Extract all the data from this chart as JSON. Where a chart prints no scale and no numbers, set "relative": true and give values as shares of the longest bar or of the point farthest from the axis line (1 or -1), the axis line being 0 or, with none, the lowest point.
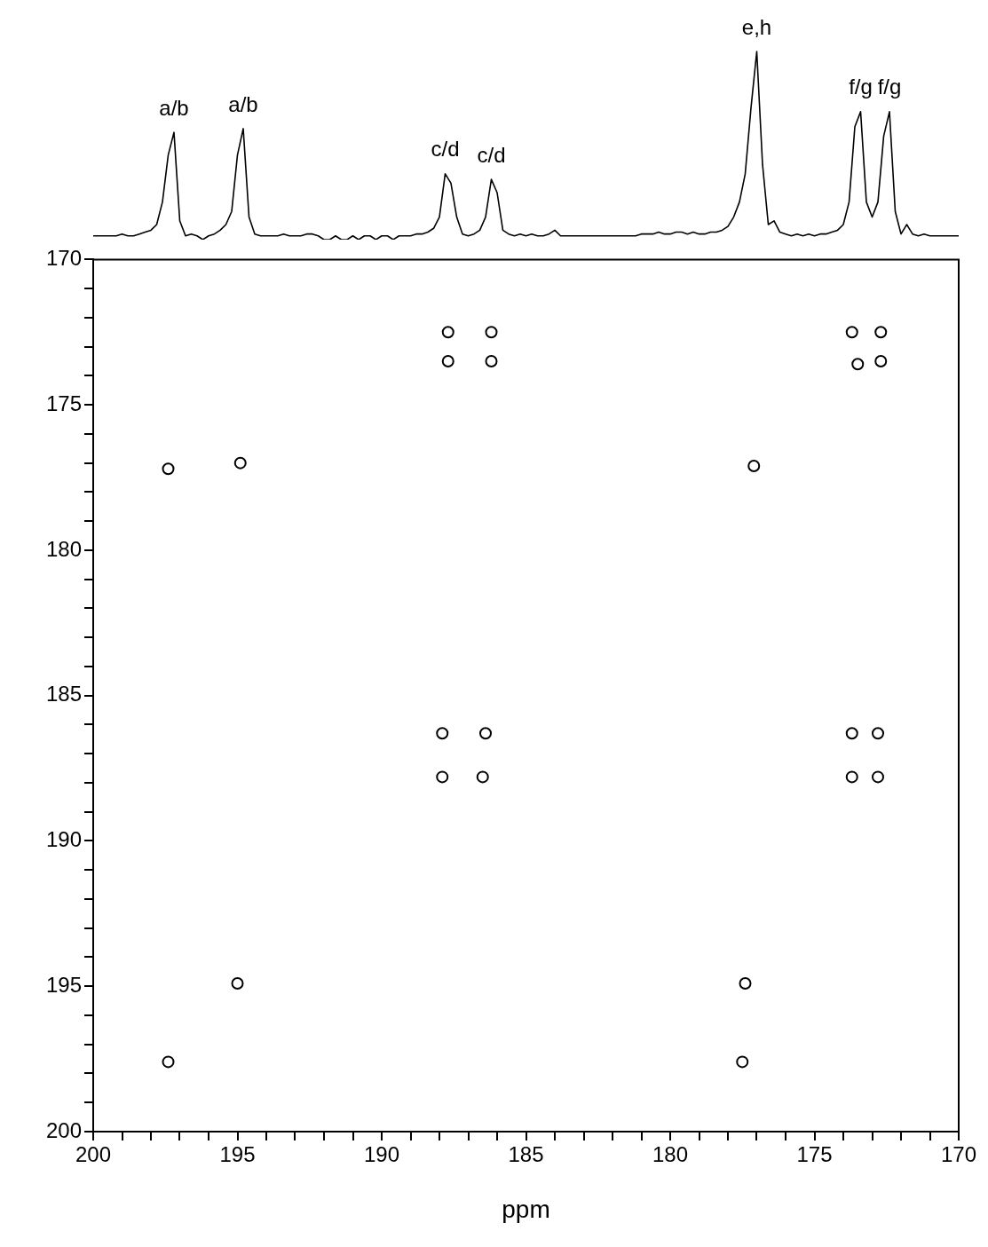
{
  "chart_data": [
    {
      "type": "line",
      "relative": true,
      "tick_labels": false,
      "categories": [
        null,
        null,
        null,
        null,
        null,
        null,
        null,
        null,
        null,
        null,
        null,
        null,
        null,
        null,
        null,
        null,
        null,
        null,
        null,
        null,
        null,
        null,
        null,
        null,
        null,
        null,
        null,
        null,
        null,
        null,
        null,
        null,
        null,
        null,
        null,
        null,
        null,
        null,
        null,
        null,
        null,
        null,
        null,
        null,
        null,
        null,
        null,
        null,
        null,
        null,
        null,
        null,
        null,
        null,
        null,
        null,
        null,
        null,
        null,
        null,
        null,
        null,
        null,
        null,
        null,
        null,
        null,
        null,
        null,
        null,
        null,
        null,
        null,
        null,
        null,
        null,
        null,
        null,
        null,
        null,
        null,
        null,
        null,
        null,
        null,
        null,
        null,
        null,
        null,
        null,
        null,
        null,
        null,
        null,
        null,
        null,
        null,
        null,
        null,
        null,
        null,
        null,
        null,
        null,
        null,
        null,
        null,
        null,
        null,
        null,
        null,
        null,
        null,
        null,
        null,
        null,
        null,
        null,
        null,
        null,
        null,
        null,
        null,
        null,
        null,
        null,
        null,
        null,
        null,
        null,
        null,
        null,
        null,
        null,
        null,
        null,
        null,
        null,
        null,
        null,
        null,
        null,
        null,
        null,
        null,
        null,
        null,
        null,
        null,
        null,
        null
      ],
      "series": [
        {
          "color": "#000000",
          "values": [
            0.02,
            0.02,
            0.02,
            0.02,
            0.02,
            0.03,
            0.02,
            0.02,
            0.03,
            0.04,
            0.05,
            0.08,
            0.2,
            0.45,
            0.57,
            0.1,
            0.02,
            0.03,
            0.02,
            0,
            0.02,
            0.03,
            0.05,
            0.08,
            0.15,
            0.45,
            0.59,
            0.12,
            0.03,
            0.02,
            0.02,
            0.02,
            0.02,
            0.03,
            0.02,
            0.02,
            0.02,
            0.03,
            0.03,
            0.02,
            0,
            0,
            0.02,
            0,
            0,
            0.02,
            0,
            0.02,
            0.02,
            0,
            0.02,
            0.02,
            0,
            0.02,
            0.02,
            0.02,
            0.03,
            0.03,
            0.04,
            0.06,
            0.12,
            0.35,
            0.3,
            0.12,
            0.03,
            0.02,
            0.03,
            0.05,
            0.12,
            0.32,
            0.25,
            0.05,
            0.03,
            0.02,
            0.03,
            0.02,
            0.03,
            0.02,
            0.02,
            0.03,
            0.05,
            0.02,
            0.02,
            0.02,
            0.02,
            0.02,
            0.02,
            0.02,
            0.02,
            0.02,
            0.02,
            0.02,
            0.02,
            0.02,
            0.02,
            0.03,
            0.03,
            0.03,
            0.04,
            0.03,
            0.03,
            0.04,
            0.04,
            0.03,
            0.04,
            0.03,
            0.03,
            0.04,
            0.04,
            0.05,
            0.07,
            0.12,
            0.2,
            0.35,
            0.7,
            1,
            0.4,
            0.08,
            0.1,
            0.04,
            0.03,
            0.02,
            0.03,
            0.02,
            0.03,
            0.02,
            0.03,
            0.03,
            0.04,
            0.05,
            0.08,
            0.2,
            0.6,
            0.68,
            0.2,
            0.12,
            0.2,
            0.55,
            0.68,
            0.15,
            0.03,
            0.08,
            0.03,
            0.02,
            0.03,
            0.02,
            0.02,
            0.02,
            0.02,
            0.02,
            0.02
          ]
        }
      ],
      "annotations": [
        "a/b",
        "a/b",
        "c/d",
        "c/d",
        "e,h",
        "f/g",
        "f/g"
      ]
    },
    {
      "type": "scatter",
      "xlabel": "ppm",
      "marker": "circle",
      "xlim": [
        200,
        170
      ],
      "ylim": [
        200,
        170
      ],
      "xticks": [
        200,
        {
          "value": 199,
          "label": null
        },
        {
          "value": 198,
          "label": null
        },
        {
          "value": 197,
          "label": null
        },
        {
          "value": 196,
          "label": null
        },
        195,
        {
          "value": 194,
          "label": null
        },
        {
          "value": 193,
          "label": null
        },
        {
          "value": 192,
          "label": null
        },
        {
          "value": 191,
          "label": null
        },
        190,
        {
          "value": 189,
          "label": null
        },
        {
          "value": 188,
          "label": null
        },
        {
          "value": 187,
          "label": null
        },
        {
          "value": 186,
          "label": null
        },
        185,
        {
          "value": 184,
          "label": null
        },
        {
          "value": 183,
          "label": null
        },
        {
          "value": 182,
          "label": null
        },
        {
          "value": 181,
          "label": null
        },
        180,
        {
          "value": 179,
          "label": null
        },
        {
          "value": 178,
          "label": null
        },
        {
          "value": 177,
          "label": null
        },
        {
          "value": 176,
          "label": null
        },
        175,
        {
          "value": 174,
          "label": null
        },
        {
          "value": 173,
          "label": null
        },
        {
          "value": 172,
          "label": null
        },
        {
          "value": 171,
          "label": null
        },
        170
      ],
      "yticks": [
        170,
        {
          "value": 171,
          "label": null
        },
        {
          "value": 172,
          "label": null
        },
        {
          "value": 173,
          "label": null
        },
        {
          "value": 174,
          "label": null
        },
        175,
        {
          "value": 176,
          "label": null
        },
        {
          "value": 177,
          "label": null
        },
        {
          "value": 178,
          "label": null
        },
        {
          "value": 179,
          "label": null
        },
        180,
        {
          "value": 181,
          "label": null
        },
        {
          "value": 182,
          "label": null
        },
        {
          "value": 183,
          "label": null
        },
        {
          "value": 184,
          "label": null
        },
        185,
        {
          "value": 186,
          "label": null
        },
        {
          "value": 187,
          "label": null
        },
        {
          "value": 188,
          "label": null
        },
        {
          "value": 189,
          "label": null
        },
        190,
        {
          "value": 191,
          "label": null
        },
        {
          "value": 192,
          "label": null
        },
        {
          "value": 193,
          "label": null
        },
        {
          "value": 194,
          "label": null
        },
        195,
        {
          "value": 196,
          "label": null
        },
        {
          "value": 197,
          "label": null
        },
        {
          "value": 198,
          "label": null
        },
        {
          "value": 199,
          "label": null
        },
        200
      ],
      "series": [
        {
          "color": "#000000",
          "x": [
            187.7,
            186.2,
            187.7,
            186.2,
            173.7,
            172.7,
            173.5,
            172.7,
            197.4,
            194.9,
            177.1,
            187.9,
            186.4,
            187.9,
            186.5,
            173.7,
            172.8,
            173.7,
            172.8,
            195.0,
            177.4,
            197.4,
            177.5
          ],
          "values": [
            172.5,
            172.5,
            173.5,
            173.5,
            172.5,
            172.5,
            173.6,
            173.5,
            177.2,
            177.0,
            177.1,
            186.3,
            186.3,
            187.8,
            187.8,
            186.3,
            186.3,
            187.8,
            187.8,
            194.9,
            194.9,
            197.6,
            197.6
          ]
        }
      ]
    }
  ]
}
